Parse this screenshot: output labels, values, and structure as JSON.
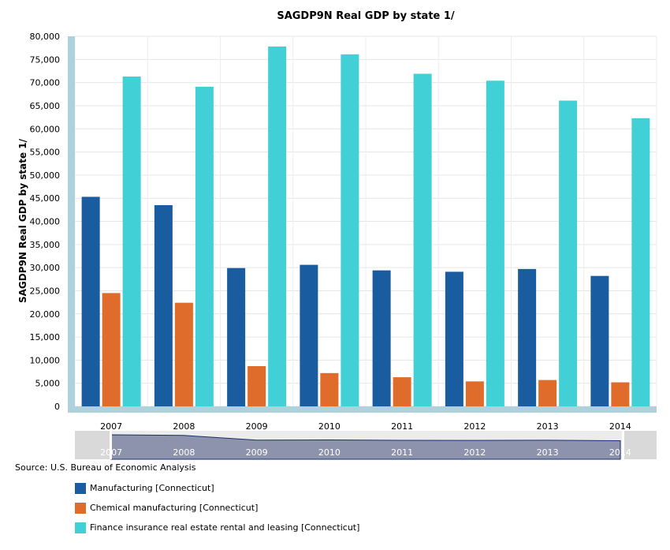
{
  "chart_data": {
    "type": "bar",
    "title": "SAGDP9N Real GDP by state 1/",
    "ylabel": "SAGDP9N Real GDP by state 1/",
    "xlabel": "",
    "categories": [
      "2007",
      "2008",
      "2009",
      "2010",
      "2011",
      "2012",
      "2013",
      "2014"
    ],
    "ylim": [
      0,
      80000
    ],
    "yticks": [
      "0",
      "5,000",
      "10,000",
      "15,000",
      "20,000",
      "25,000",
      "30,000",
      "35,000",
      "40,000",
      "45,000",
      "50,000",
      "55,000",
      "60,000",
      "65,000",
      "70,000",
      "75,000",
      "80,000"
    ],
    "grid": true,
    "legend_position": "bottom-left",
    "series": [
      {
        "name": "Manufacturing [Connecticut]",
        "color": "#1a5ca0",
        "values": [
          45300,
          43500,
          29900,
          30600,
          29400,
          29100,
          29700,
          28200
        ]
      },
      {
        "name": "Chemical manufacturing [Connecticut]",
        "color": "#df6c2a",
        "values": [
          24500,
          22400,
          8700,
          7200,
          6300,
          5400,
          5700,
          5200
        ]
      },
      {
        "name": "Finance insurance real estate rental and leasing [Connecticut]",
        "color": "#42d0d7",
        "values": [
          71300,
          69100,
          77800,
          76100,
          71900,
          70400,
          66100,
          62300
        ]
      }
    ]
  },
  "navigator": {
    "labels": [
      "2007",
      "2008",
      "2009",
      "2010",
      "2011",
      "2012",
      "2013",
      "2014"
    ]
  },
  "source": "Source: U.S. Bureau of Economic Analysis"
}
